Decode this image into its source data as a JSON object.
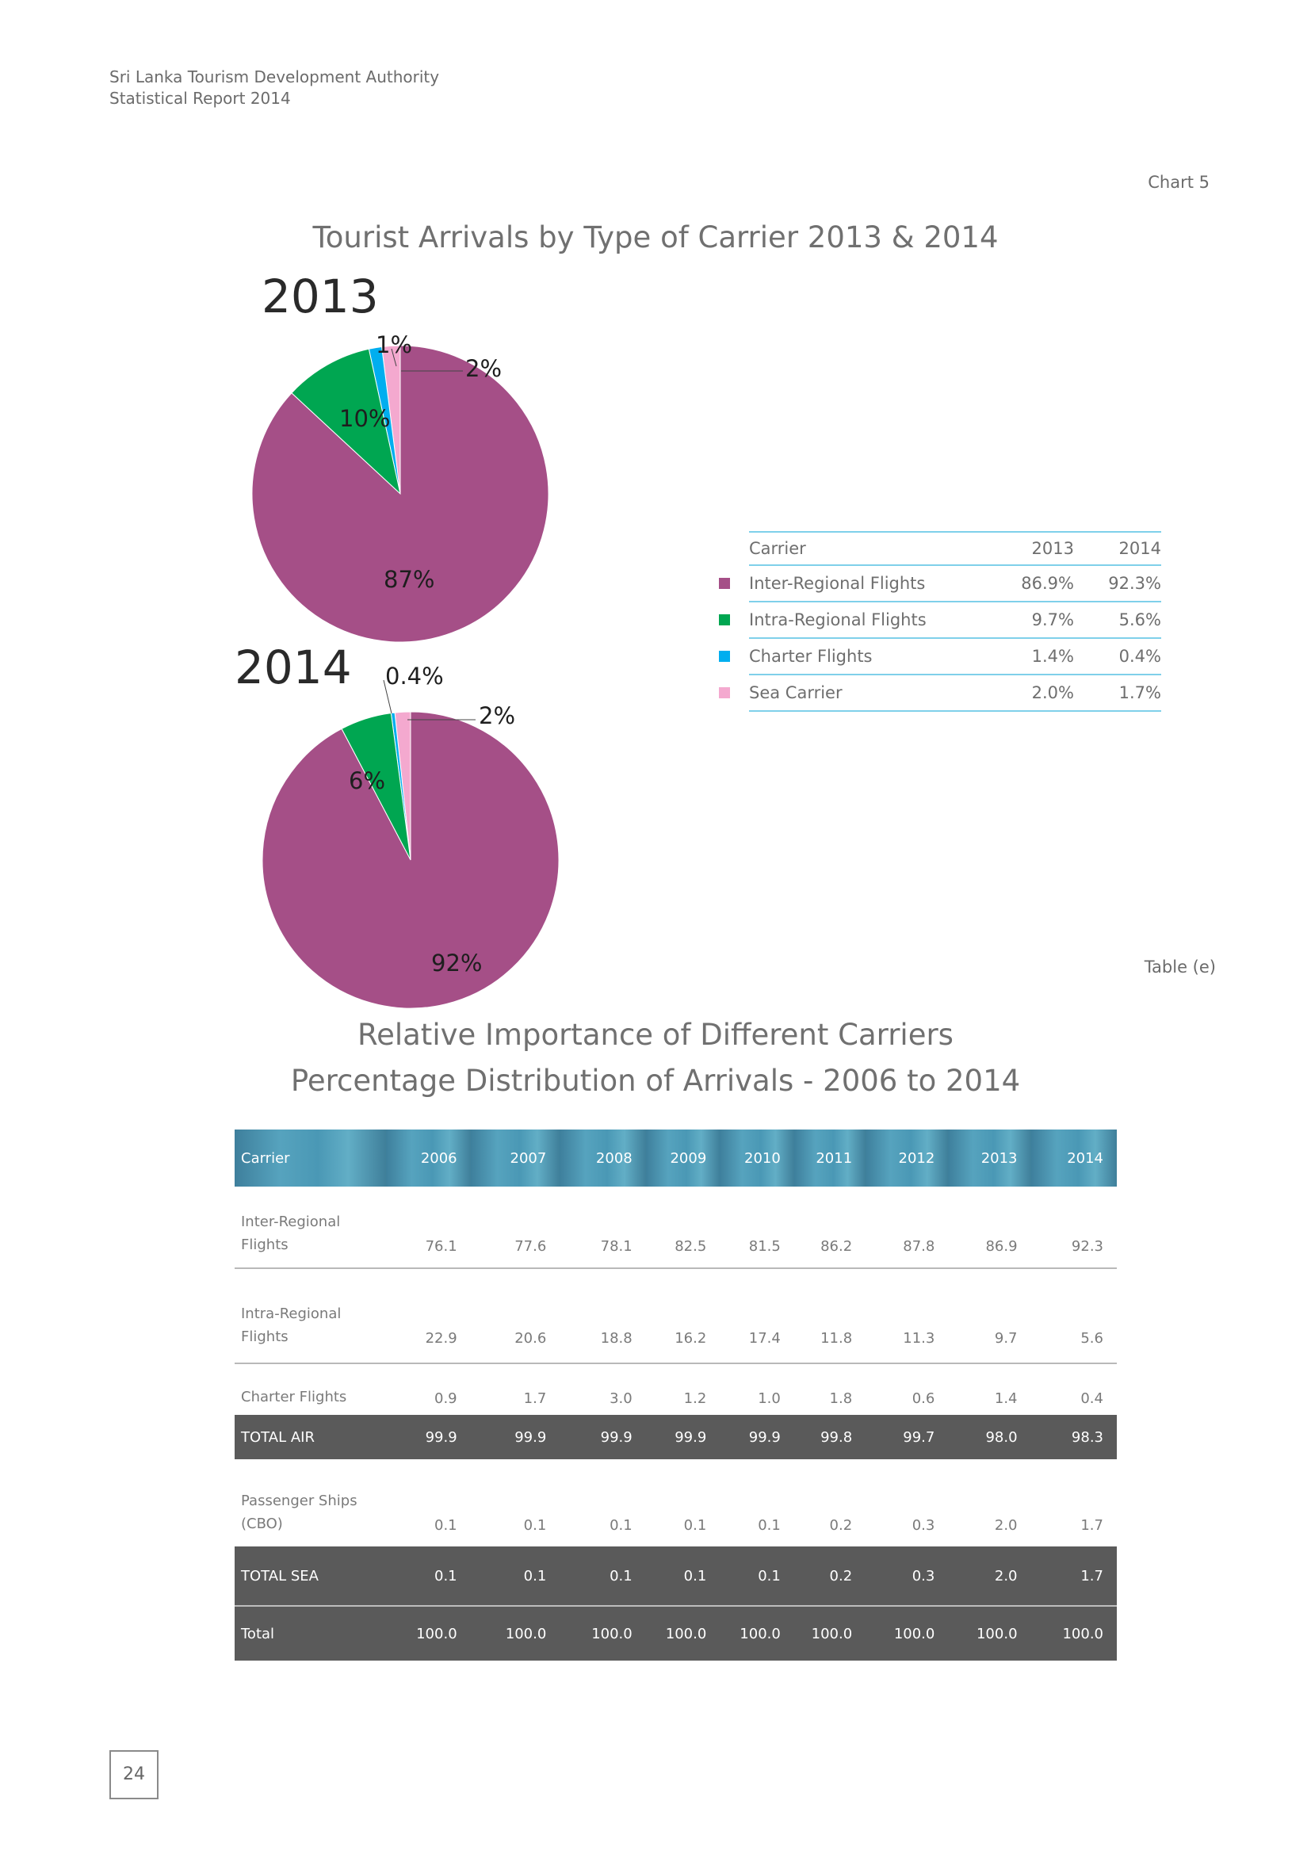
{
  "header": {
    "line1": "Sri Lanka Tourism Development Authority",
    "line2": "Statistical Report 2014"
  },
  "chart_label": "Chart 5",
  "chart_title": "Tourist Arrivals by Type of Carrier 2013 & 2014",
  "colors": {
    "inter": "#a54f87",
    "intra": "#00a651",
    "charter": "#00aeef",
    "sea": "#f4a9cf"
  },
  "chart_data": [
    {
      "type": "pie",
      "title": "2013",
      "categories": [
        "Inter-Regional Flights",
        "Intra-Regional Flights",
        "Charter Flights",
        "Sea Carrier"
      ],
      "values": [
        86.9,
        9.7,
        1.4,
        2.0
      ],
      "labels": [
        "87%",
        "10%",
        "1%",
        "2%"
      ]
    },
    {
      "type": "pie",
      "title": "2014",
      "categories": [
        "Inter-Regional Flights",
        "Intra-Regional Flights",
        "Charter Flights",
        "Sea Carrier"
      ],
      "values": [
        92.3,
        5.6,
        0.4,
        1.7
      ],
      "labels": [
        "92%",
        "6%",
        "0.4%",
        "2%"
      ]
    }
  ],
  "summary_table": {
    "header": [
      "Carrier",
      "2013",
      "2014"
    ],
    "rows": [
      {
        "carrier": "Inter-Regional Flights",
        "y2013": "86.9%",
        "y2014": "92.3%",
        "color": "#a54f87"
      },
      {
        "carrier": "Intra-Regional Flights",
        "y2013": "9.7%",
        "y2014": "5.6%",
        "color": "#00a651"
      },
      {
        "carrier": "Charter Flights",
        "y2013": "1.4%",
        "y2014": "0.4%",
        "color": "#00aeef"
      },
      {
        "carrier": "Sea Carrier",
        "y2013": "2.0%",
        "y2014": "1.7%",
        "color": "#f4a9cf"
      }
    ]
  },
  "table_label": "Table (e)",
  "table_title_1": "Relative Importance of Different Carriers",
  "table_title_2": "Percentage Distribution of Arrivals - 2006 to 2014",
  "main_table": {
    "header": [
      "Carrier",
      "2006",
      "2007",
      "2008",
      "2009",
      "2010",
      "2011",
      "2012",
      "2013",
      "2014"
    ],
    "rows": [
      {
        "l1": "Inter-Regional",
        "l2": "Flights",
        "v": [
          "76.1",
          "77.6",
          "78.1",
          "82.5",
          "81.5",
          "86.2",
          "87.8",
          "86.9",
          "92.3"
        ]
      },
      {
        "l1": "Intra-Regional",
        "l2": "Flights",
        "v": [
          "22.9",
          "20.6",
          "18.8",
          "16.2",
          "17.4",
          "11.8",
          "11.3",
          "9.7",
          "5.6"
        ]
      },
      {
        "l1": "Charter Flights",
        "v": [
          "0.9",
          "1.7",
          "3.0",
          "1.2",
          "1.0",
          "1.8",
          "0.6",
          "1.4",
          "0.4"
        ]
      },
      {
        "l1": "TOTAL AIR",
        "v": [
          "99.9",
          "99.9",
          "99.9",
          "99.9",
          "99.9",
          "99.8",
          "99.7",
          "98.0",
          "98.3"
        ]
      },
      {
        "l1": "Passenger Ships",
        "l2": "(CBO)",
        "v": [
          "0.1",
          "0.1",
          "0.1",
          "0.1",
          "0.1",
          "0.2",
          "0.3",
          "2.0",
          "1.7"
        ]
      },
      {
        "l1": "TOTAL  SEA",
        "v": [
          "0.1",
          "0.1",
          "0.1",
          "0.1",
          "0.1",
          "0.2",
          "0.3",
          "2.0",
          "1.7"
        ]
      },
      {
        "l1": "Total",
        "v": [
          "100.0",
          "100.0",
          "100.0",
          "100.0",
          "100.0",
          "100.0",
          "100.0",
          "100.0",
          "100.0"
        ]
      }
    ]
  },
  "page_number": "24"
}
